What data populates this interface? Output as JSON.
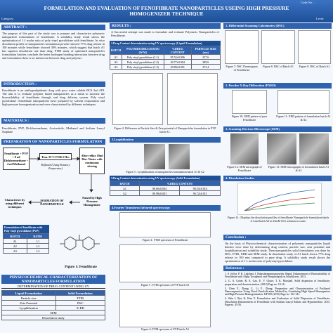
{
  "header": {
    "title": "FORMULATION AND EVALUATION OF FENOFIBRATE NANOPARTICLES USEING HIGH PRESSURE HOMOGENIZER TECHNIQUE",
    "code": "Code No. :",
    "category": "Category:",
    "level": "Level:"
  },
  "abstract": {
    "heading": "ABSTRACT :",
    "text": "The purpose of this part of the study was to prepare and characterize polymeric nanoparticle formulations of fenofibrate. A solubility study result shows the optimization of 1:1 molar ratio of poly vinyl pyrrolidone with fenofibrate. In vitro dissolution profile of nanoparticles formulation powder showed 77% drug release in 100 minutes while fenofibrate showed 38% minutes, which suggest that batch A1 has superior dissolution rate than drug. FTIR study of optimized nanoparticles formulation batches conclude the better hydrogen bonding interaction between drug and formulation there is no interaction between drug and polymer."
  },
  "introduction": {
    "heading": "INTRODUCTION :",
    "text": "Fenofibrate is an antihyperlipidemic drug with poor water soluble BCS 2nd API. The aim is to evaluate polymer based nanoparticles as a mean to increase the bioavailability of fenofibrate through oral drug delivery system. Poly vinyl pyrrolidone /fenofibrate nanoparticles have prepared by solvent evaporation and high pressure homogenization and were characterized by different techniques."
  },
  "materials": {
    "heading": "MATERIALS :",
    "text": "Fenofibrate, PVP, Dichloromethane, Acetonitrile, Methanol and Sodium Lauryl Sulphate"
  },
  "preparation": {
    "heading": "PREPARATION OF NANOPARTICLES FORMULATION :",
    "steps": [
      "Fenofibrate + PVP + 8 ml Dichloromethane + 4 ml Methanol",
      "Tem. 55°C FOR 2 Hrs",
      "Refluxed (Using Rotatory Evaporator)",
      "After reflux 10ml Dist. Water with continuous stirring",
      "Passed by High Pressure Homogenizer",
      "FORMATION OF NANOPARTICLE",
      "Characterize by using different techniques"
    ]
  },
  "formulation_table": {
    "title": "Formulation of fenofibrate with Poly vinyl pyrrolidone (PVP)",
    "header": [
      "BATCH",
      "RATIO"
    ],
    "rows": [
      [
        "A1",
        "1:1"
      ],
      [
        "A2",
        "1:2"
      ],
      [
        "A3",
        "1:3"
      ]
    ]
  },
  "figure1": {
    "caption": "Figure 1: Fenofibrate"
  },
  "characterization": {
    "heading": "PHYSICOCHEMICAL CHARACTERIZATION OF NANOPARTICLES FORMULATION",
    "subheading": "DETERMINATION OF DRUG CONTENT USING UV",
    "header": [
      "Liquid Formulation",
      "Solid Formulation"
    ],
    "rows": [
      [
        "Particle size",
        "FTIR"
      ],
      [
        "Zeta Potential",
        "DSC"
      ],
      [
        "Lyophilization",
        "X-RD"
      ],
      [
        "SEM"
      ],
      [
        "Dissolution study"
      ]
    ]
  },
  "results": {
    "heading": "RESULTS :",
    "text": "A Successful attempt was made to formulate and evaluate Polymeric Nanoparticles of Fenofibrate."
  },
  "table1": {
    "title": "1.Drug Content determination using UV spectroscopy (Liquid Formulation)",
    "header": [
      "BATCH",
      "POLYMER DRUG RATIO (W/W)",
      "%DRUG CONTENT",
      "PARTICLE SIZE (nm)"
    ],
    "rows": [
      [
        "A1",
        "Poly vinyl pyrrolidone (1:1)",
        "95.52±0.006",
        "237.6"
      ],
      [
        "A2",
        "Poly vinyl pyrrolidone (1:2)",
        "49.77±0.004",
        "289.6"
      ],
      [
        "A3",
        "Poly vinyl pyrrolidone (1:3)",
        "49.89±0.001",
        "272.4"
      ]
    ]
  },
  "figure2": {
    "caption": "Figure 2: Difference in Particle Size & Zeta potential of Nanoparticles formulation in PVP batch A1."
  },
  "lyophilization": {
    "heading": "2.Lyophilization",
    "caption": "Figure 3 : Lyophilization of nanoparticles formulation batch A1 & A2"
  },
  "table3": {
    "title": "3.Drug Content determination using UV spectroscopy (Solid Formulation)",
    "header": [
      "BATCH",
      "%DRUG CONTENT"
    ],
    "rows": [
      [
        "A1",
        "86.60±0.004",
        "98.53±0.014"
      ],
      [
        "A2",
        "80.98±0.001",
        "96.72±0.011"
      ]
    ]
  },
  "ftir": {
    "heading": "4.Fourier Transform Infrared spectroscopy",
    "captions": [
      "Figure 4 : FTIR spectrum of Fenofibrate",
      "Figure 5 : FTIR spectrum of PVP batch A1",
      "Figure 6: FTIR spectrum of PVP batch A2"
    ]
  },
  "dsc": {
    "heading": "1. Differential Scanning Calorimetry (DSC)",
    "captions": [
      "Figure 7: DSC Thermogram of Fenofibrate",
      "Figure 8: DSC of Batch A1",
      "Figure 9: DSC of Batch A2"
    ]
  },
  "pxrd": {
    "heading": "2. Powder X-Ray Diffraction (PXRD)",
    "captions": [
      "Figure 10: XRD pattern of pure Fenofibrate",
      "Figure 11: XRD pattern of formulation batch A1 & A2"
    ]
  },
  "sem": {
    "heading": "3. Scanning Electron Microscope (SEM)",
    "captions": [
      "Figure 12: SEM micrograph of Fenofibrate",
      "Figure 13: SEM micrographs of formulation batch A1 & A2"
    ]
  },
  "dissolution": {
    "heading": "4. Dissolution Studies",
    "caption": "Figure 14 : Displays the dissolution profiles of fenofibrate Nanoparticle formulation batch A1 and batch A2 in 25mM SLS solution in water."
  },
  "conclusion": {
    "heading": "Conclusion :",
    "text": "On the basis of Physicochemical characterization of polymeric nanoparticles liquid batches were done by determining drug content, particle size, zeta potential and lyophilization and solubility study. Then nanoparticles solid formulation was done by DSC, FTIR, XRD and SEM study. In dissolution study of A1 batch shows 77% drug release in 100 min compared to pure drug. A solubility study result shows the optimization of 1:1 molar ratio of polyvinyl pyrrolidone."
  },
  "references": {
    "heading": "Reference :",
    "items": [
      "1. S. Jollya, P. K. Lakshmi, J. Balasubramaniamwurthy. Rapid, Enhancement of Bioavailability of Fenofibrate with Alpha Tocopherol and Phospholipids as Solubilizers, 2013.",
      "2. G. A. Gober, R. A. Gao, E. V. Gluter, T. K. Marshall. Solid dispersion of fenofibrate: preparation and characterization. (2012) Page no. 10-16.",
      "3. Chen Y., Zhang C., Li Y., Zhang. Preparation and Characterization of Paclitaxel Nanosuspension Using Novel Emulsification Method by Combining High Speed Homogenizer and High Pressure Homogenization. IJP 495 (2015) Page no. 132-141.",
      "4. Shin J, Ryu K, Kim Y. Formulation and Evaluation of Solid Dispersion of Fenofibrate, Dissolution Enhancement of Fenofibrate with Sodium Lauryl Sulfate and Hypromellose, 2015, Page no. 45-56."
    ]
  }
}
